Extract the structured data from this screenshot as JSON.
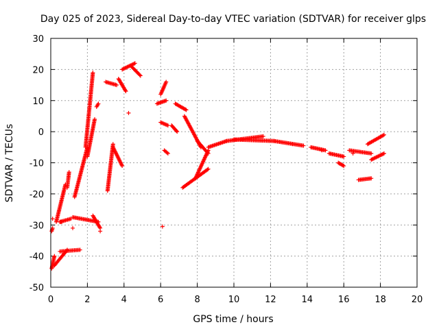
{
  "chart_data": {
    "type": "scatter",
    "title": "Day 025 of 2023, Sidereal Day-to-day VTEC variation (SDTVAR) for receiver glps",
    "xlabel": "GPS time / hours",
    "ylabel": "SDTVAR / TECUs",
    "xlim": [
      0,
      20
    ],
    "ylim": [
      -50,
      30
    ],
    "xticks": [
      0,
      2,
      4,
      6,
      8,
      10,
      12,
      14,
      16,
      18,
      20
    ],
    "yticks": [
      -50,
      -40,
      -30,
      -20,
      -10,
      0,
      10,
      20,
      30
    ],
    "grid": true,
    "marker": "+",
    "color": "#ff0000",
    "segments": [
      {
        "x": [
          0.05,
          0.2
        ],
        "y": [
          -44,
          -40
        ]
      },
      {
        "x": [
          0.2,
          0.9
        ],
        "y": [
          -43,
          -38
        ]
      },
      {
        "x": [
          0.5,
          1.6
        ],
        "y": [
          -38.5,
          -38
        ]
      },
      {
        "x": [
          0.05,
          0.1
        ],
        "y": [
          -32,
          -31
        ]
      },
      {
        "x": [
          0.3,
          0.8
        ],
        "y": [
          -29,
          -17
        ]
      },
      {
        "x": [
          0.5,
          0.6
        ],
        "y": [
          -29,
          -29
        ]
      },
      {
        "x": [
          0.5,
          1.1
        ],
        "y": [
          -29,
          -28
        ]
      },
      {
        "x": [
          0.9,
          1.0
        ],
        "y": [
          -18,
          -13
        ]
      },
      {
        "x": [
          1.2,
          2.6
        ],
        "y": [
          -27.5,
          -29
        ]
      },
      {
        "x": [
          1.3,
          2.0
        ],
        "y": [
          -21,
          -5
        ]
      },
      {
        "x": [
          1.9,
          2.3
        ],
        "y": [
          -5,
          19
        ]
      },
      {
        "x": [
          2.0,
          2.4
        ],
        "y": [
          -8,
          4
        ]
      },
      {
        "x": [
          2.3,
          2.7
        ],
        "y": [
          -27,
          -31
        ]
      },
      {
        "x": [
          2.5,
          2.6
        ],
        "y": [
          8,
          9
        ]
      },
      {
        "x": [
          3.0,
          3.6
        ],
        "y": [
          16,
          15
        ]
      },
      {
        "x": [
          3.1,
          3.4
        ],
        "y": [
          -19,
          -4
        ]
      },
      {
        "x": [
          3.4,
          3.9
        ],
        "y": [
          -5,
          -11
        ]
      },
      {
        "x": [
          3.7,
          4.1
        ],
        "y": [
          17,
          13
        ]
      },
      {
        "x": [
          3.9,
          4.6
        ],
        "y": [
          20,
          22
        ]
      },
      {
        "x": [
          4.4,
          4.9
        ],
        "y": [
          21,
          18
        ]
      },
      {
        "x": [
          5.8,
          6.3
        ],
        "y": [
          9,
          10
        ]
      },
      {
        "x": [
          6.0,
          6.3
        ],
        "y": [
          12,
          16
        ]
      },
      {
        "x": [
          6.0,
          6.4
        ],
        "y": [
          3,
          2
        ]
      },
      {
        "x": [
          6.2,
          6.4
        ],
        "y": [
          -6,
          -7
        ]
      },
      {
        "x": [
          6.6,
          6.9
        ],
        "y": [
          2,
          0
        ]
      },
      {
        "x": [
          6.8,
          7.4
        ],
        "y": [
          9,
          7
        ]
      },
      {
        "x": [
          7.3,
          8.2
        ],
        "y": [
          5,
          -5
        ]
      },
      {
        "x": [
          7.2,
          8.6
        ],
        "y": [
          -18,
          -12
        ]
      },
      {
        "x": [
          7.9,
          8.6
        ],
        "y": [
          -15,
          -6
        ]
      },
      {
        "x": [
          8.0,
          8.6
        ],
        "y": [
          -3,
          -7
        ]
      },
      {
        "x": [
          8.6,
          9.6
        ],
        "y": [
          -5,
          -3
        ]
      },
      {
        "x": [
          9.6,
          11.6
        ],
        "y": [
          -3,
          -1.5
        ]
      },
      {
        "x": [
          10.0,
          12.2
        ],
        "y": [
          -2.5,
          -3
        ]
      },
      {
        "x": [
          12.2,
          13.8
        ],
        "y": [
          -3,
          -4.5
        ]
      },
      {
        "x": [
          14.2,
          15.0
        ],
        "y": [
          -5,
          -6
        ]
      },
      {
        "x": [
          15.2,
          16.0
        ],
        "y": [
          -7,
          -8
        ]
      },
      {
        "x": [
          15.7,
          16.0
        ],
        "y": [
          -10,
          -11
        ]
      },
      {
        "x": [
          16.3,
          17.5
        ],
        "y": [
          -6,
          -7
        ]
      },
      {
        "x": [
          16.8,
          17.5
        ],
        "y": [
          -15.5,
          -15
        ]
      },
      {
        "x": [
          17.3,
          18.2
        ],
        "y": [
          -4,
          -1
        ]
      },
      {
        "x": [
          17.5,
          18.2
        ],
        "y": [
          -9,
          -7
        ]
      }
    ],
    "points": [
      {
        "x": 4.25,
        "y": 6
      },
      {
        "x": 6.1,
        "y": -30.5
      },
      {
        "x": 0.1,
        "y": -28
      },
      {
        "x": 2.7,
        "y": -32
      },
      {
        "x": 1.2,
        "y": -31
      },
      {
        "x": 13.2,
        "y": -4
      },
      {
        "x": 14.8,
        "y": -6
      },
      {
        "x": 16.5,
        "y": -7
      }
    ]
  }
}
